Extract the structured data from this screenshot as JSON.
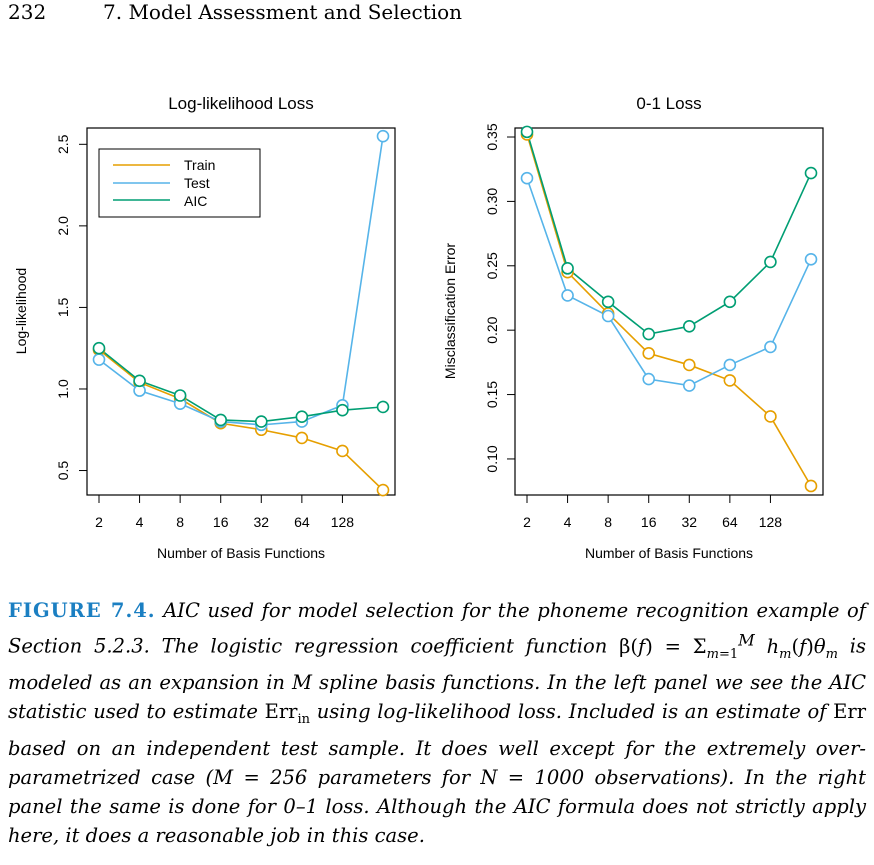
{
  "header": {
    "page_number": "232",
    "chapter_title": "7.  Model Assessment and Selection"
  },
  "colors": {
    "train": "#E69F00",
    "test": "#56B4E9",
    "aic": "#009E73",
    "figure_label": "#1b7fc2"
  },
  "chart_data": [
    {
      "type": "line",
      "title": "Log-likelihood Loss",
      "xlabel": "Number of Basis Functions",
      "ylabel": "Log-likelihood",
      "x": [
        2,
        4,
        8,
        16,
        32,
        64,
        128,
        256
      ],
      "x_tick_labels": [
        "2",
        "4",
        "8",
        "16",
        "32",
        "64",
        "128"
      ],
      "y_ticks": [
        "0.5",
        "1.0",
        "1.5",
        "2.0",
        "2.5"
      ],
      "ylim": [
        0.35,
        2.6
      ],
      "x_scale": "log2",
      "legend_position": "top-left",
      "series": [
        {
          "name": "Train",
          "values": [
            1.24,
            1.04,
            0.94,
            0.79,
            0.75,
            0.7,
            0.62,
            0.38
          ]
        },
        {
          "name": "Test",
          "values": [
            1.18,
            0.99,
            0.91,
            0.8,
            0.78,
            0.8,
            0.9,
            2.55
          ]
        },
        {
          "name": "AIC",
          "values": [
            1.25,
            1.05,
            0.96,
            0.81,
            0.8,
            0.83,
            0.87,
            0.89
          ]
        }
      ]
    },
    {
      "type": "line",
      "title": "0-1 Loss",
      "xlabel": "Number of Basis Functions",
      "ylabel": "Misclassification Error",
      "x": [
        2,
        4,
        8,
        16,
        32,
        64,
        128,
        256
      ],
      "x_tick_labels": [
        "2",
        "4",
        "8",
        "16",
        "32",
        "64",
        "128"
      ],
      "y_ticks": [
        "0.10",
        "0.15",
        "0.20",
        "0.25",
        "0.30",
        "0.35"
      ],
      "ylim": [
        0.072,
        0.357
      ],
      "x_scale": "log2",
      "series": [
        {
          "name": "Train",
          "values": [
            0.352,
            0.245,
            0.213,
            0.182,
            0.173,
            0.161,
            0.133,
            0.079
          ]
        },
        {
          "name": "Test",
          "values": [
            0.318,
            0.227,
            0.211,
            0.162,
            0.157,
            0.173,
            0.187,
            0.255
          ]
        },
        {
          "name": "AIC",
          "values": [
            0.354,
            0.248,
            0.222,
            0.197,
            0.203,
            0.222,
            0.253,
            0.322
          ]
        }
      ]
    }
  ],
  "caption": {
    "label": "FIGURE 7.4.",
    "part1": "AIC used for model selection for the phoneme recognition example of Section 5.2.3. The logistic regression coefficient function",
    "formula": "β(f) = Σ_{m=1}^{M} h_m(f)θ_m",
    "part2": "is modeled as an expansion in M spline basis functions. In the left panel we see the AIC statistic used to estimate",
    "err_in": "Err",
    "err_in_sub": "in",
    "part3": "using log-likelihood loss. Included is an estimate of",
    "err": "Err",
    "part4": "based on an independent test sample. It does well except for the extremely over-parametrized case (M = 256 parameters for N = 1000 observations). In the right panel the same is done for 0–1 loss. Although the AIC formula does not strictly apply here, it does a reasonable job in this case."
  }
}
